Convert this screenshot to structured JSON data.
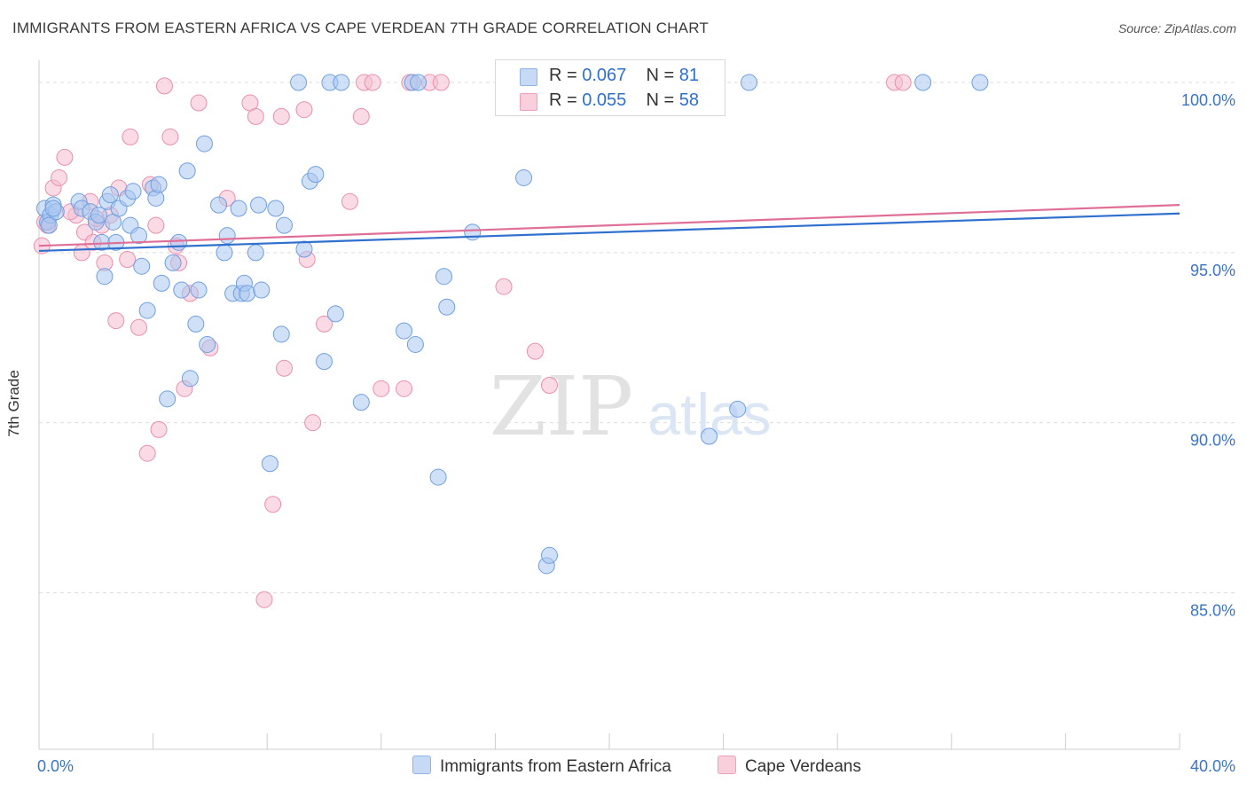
{
  "header": {
    "title": "IMMIGRANTS FROM EASTERN AFRICA VS CAPE VERDEAN 7TH GRADE CORRELATION CHART",
    "source": "Source: ZipAtlas.com"
  },
  "watermark": {
    "zip": "ZIP",
    "atlas": "atlas"
  },
  "legend": {
    "rows": [
      {
        "r_label": "R =",
        "r_value": "0.067",
        "n_label": "N =",
        "n_value": "81"
      },
      {
        "r_label": "R =",
        "r_value": "0.055",
        "n_label": "N =",
        "n_value": "58"
      }
    ]
  },
  "colors": {
    "blue_fill": "#a9c6f0",
    "blue_stroke": "#6f9fe0",
    "blue_line": "#2f6fce",
    "pink_fill": "#f6bdd0",
    "pink_stroke": "#e98fae",
    "pink_line": "#e06f98",
    "tick_text": "#3a73c8",
    "grid": "#dddddd"
  },
  "chart_data": {
    "type": "scatter",
    "title": "IMMIGRANTS FROM EASTERN AFRICA VS CAPE VERDEAN 7TH GRADE CORRELATION CHART",
    "xlabel": "",
    "ylabel": "7th Grade",
    "xlim": [
      0,
      40
    ],
    "ylim": [
      80.4,
      100.6
    ],
    "x_tick_labels": [
      "0.0%",
      "40.0%"
    ],
    "y_ticks": [
      85,
      90,
      95,
      100
    ],
    "y_tick_labels": [
      "85.0%",
      "90.0%",
      "95.0%",
      "100.0%"
    ],
    "grid": true,
    "legend_position": "top-center",
    "series": [
      {
        "name": "Immigrants from Eastern Africa",
        "r": 0.067,
        "n": 81,
        "trend": [
          [
            0,
            95.05
          ],
          [
            40,
            96.15
          ]
        ],
        "points": [
          [
            0.2,
            96.3
          ],
          [
            0.3,
            95.9
          ],
          [
            0.4,
            96.1
          ],
          [
            0.5,
            96.4
          ],
          [
            0.6,
            96.2
          ],
          [
            1.4,
            96.5
          ],
          [
            1.5,
            96.3
          ],
          [
            1.8,
            96.2
          ],
          [
            2.0,
            95.9
          ],
          [
            2.1,
            96.1
          ],
          [
            2.2,
            95.3
          ],
          [
            2.3,
            94.3
          ],
          [
            2.4,
            96.5
          ],
          [
            2.5,
            96.7
          ],
          [
            2.6,
            95.9
          ],
          [
            2.7,
            95.3
          ],
          [
            2.8,
            96.3
          ],
          [
            3.1,
            96.6
          ],
          [
            3.2,
            95.8
          ],
          [
            3.3,
            96.8
          ],
          [
            3.5,
            95.5
          ],
          [
            3.6,
            94.6
          ],
          [
            3.8,
            93.3
          ],
          [
            4.0,
            96.9
          ],
          [
            4.1,
            96.6
          ],
          [
            4.2,
            97.0
          ],
          [
            4.3,
            94.1
          ],
          [
            4.5,
            90.7
          ],
          [
            4.7,
            94.7
          ],
          [
            4.9,
            95.3
          ],
          [
            5.0,
            93.9
          ],
          [
            5.2,
            97.4
          ],
          [
            5.3,
            91.3
          ],
          [
            5.5,
            92.9
          ],
          [
            5.6,
            93.9
          ],
          [
            5.8,
            98.2
          ],
          [
            5.9,
            92.3
          ],
          [
            6.3,
            96.4
          ],
          [
            6.5,
            95.0
          ],
          [
            6.6,
            95.5
          ],
          [
            6.8,
            93.8
          ],
          [
            7.0,
            96.3
          ],
          [
            7.1,
            93.8
          ],
          [
            7.2,
            94.1
          ],
          [
            7.3,
            93.8
          ],
          [
            7.6,
            95.0
          ],
          [
            7.7,
            96.4
          ],
          [
            7.8,
            93.9
          ],
          [
            8.1,
            88.8
          ],
          [
            8.3,
            96.3
          ],
          [
            8.5,
            92.6
          ],
          [
            8.6,
            95.8
          ],
          [
            9.1,
            100.0
          ],
          [
            9.3,
            95.1
          ],
          [
            9.5,
            97.1
          ],
          [
            9.7,
            97.3
          ],
          [
            10.0,
            91.8
          ],
          [
            10.2,
            100.0
          ],
          [
            10.4,
            93.2
          ],
          [
            10.6,
            100.0
          ],
          [
            11.3,
            90.6
          ],
          [
            12.8,
            92.7
          ],
          [
            13.1,
            100.0
          ],
          [
            13.2,
            92.3
          ],
          [
            13.3,
            100.0
          ],
          [
            14.0,
            88.4
          ],
          [
            14.2,
            94.3
          ],
          [
            14.3,
            93.4
          ],
          [
            15.2,
            95.6
          ],
          [
            16.3,
            100.0
          ],
          [
            17.0,
            97.2
          ],
          [
            17.8,
            85.8
          ],
          [
            17.9,
            86.1
          ],
          [
            18.6,
            100.0
          ],
          [
            23.5,
            89.6
          ],
          [
            24.5,
            90.4
          ],
          [
            24.9,
            100.0
          ],
          [
            31.0,
            100.0
          ],
          [
            33.0,
            100.0
          ],
          [
            0.35,
            95.8
          ],
          [
            0.5,
            96.3
          ]
        ]
      },
      {
        "name": "Cape Verdeans",
        "r": 0.055,
        "n": 58,
        "trend": [
          [
            0,
            95.2
          ],
          [
            40,
            96.4
          ]
        ],
        "points": [
          [
            0.1,
            95.2
          ],
          [
            0.3,
            95.8
          ],
          [
            0.5,
            96.9
          ],
          [
            0.7,
            97.2
          ],
          [
            0.9,
            97.8
          ],
          [
            1.3,
            96.1
          ],
          [
            1.5,
            95.0
          ],
          [
            1.6,
            95.6
          ],
          [
            1.8,
            96.5
          ],
          [
            1.9,
            95.3
          ],
          [
            2.2,
            95.8
          ],
          [
            2.3,
            94.7
          ],
          [
            2.5,
            96.1
          ],
          [
            2.7,
            93.0
          ],
          [
            2.8,
            96.9
          ],
          [
            3.1,
            94.8
          ],
          [
            3.2,
            98.4
          ],
          [
            3.5,
            92.8
          ],
          [
            3.8,
            89.1
          ],
          [
            3.9,
            97.0
          ],
          [
            4.1,
            95.8
          ],
          [
            4.2,
            89.8
          ],
          [
            4.4,
            99.9
          ],
          [
            4.6,
            98.4
          ],
          [
            4.8,
            95.2
          ],
          [
            4.9,
            94.7
          ],
          [
            5.1,
            91.0
          ],
          [
            5.3,
            93.8
          ],
          [
            5.6,
            99.4
          ],
          [
            6.0,
            92.2
          ],
          [
            6.6,
            96.6
          ],
          [
            7.4,
            99.4
          ],
          [
            7.6,
            99.0
          ],
          [
            7.9,
            84.8
          ],
          [
            8.2,
            87.6
          ],
          [
            8.5,
            99.0
          ],
          [
            8.6,
            91.6
          ],
          [
            9.3,
            99.2
          ],
          [
            9.4,
            94.8
          ],
          [
            9.6,
            90.0
          ],
          [
            10.0,
            92.9
          ],
          [
            10.9,
            96.5
          ],
          [
            11.4,
            100.0
          ],
          [
            11.3,
            99.0
          ],
          [
            11.7,
            100.0
          ],
          [
            12.0,
            91.0
          ],
          [
            12.8,
            91.0
          ],
          [
            13.0,
            100.0
          ],
          [
            13.7,
            100.0
          ],
          [
            14.1,
            100.0
          ],
          [
            16.3,
            94.0
          ],
          [
            17.4,
            92.1
          ],
          [
            17.9,
            91.1
          ],
          [
            30.0,
            100.0
          ],
          [
            30.3,
            100.0
          ],
          [
            0.2,
            95.9
          ],
          [
            1.1,
            96.2
          ],
          [
            2.0,
            96.0
          ]
        ]
      }
    ]
  }
}
